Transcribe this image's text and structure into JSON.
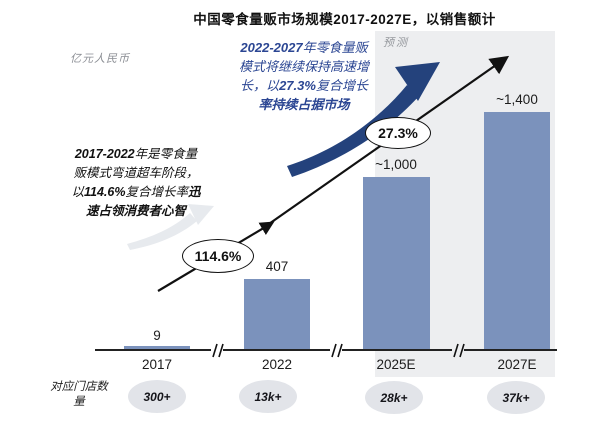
{
  "title": "中国零食量贩市场规模2017-2027E，以销售额计",
  "y_unit_label": "亿元人民币",
  "forecast_label": "预测",
  "chart_data": {
    "type": "bar",
    "categories": [
      "2017",
      "2022",
      "2025E",
      "2027E"
    ],
    "values": [
      9,
      407,
      1000,
      1400
    ],
    "display_values": [
      "9",
      "407",
      "~1,000",
      "~1,400"
    ],
    "title": "中国零食量贩市场规模2017-2027E，以销售额计",
    "ylabel": "亿元人民币",
    "xlabel": "",
    "axis_breaks": true,
    "forecast_categories": [
      "2025E",
      "2027E"
    ],
    "bar_color": "#7b92bc",
    "growth_annotations": [
      {
        "label": "114.6%",
        "period": "2017-2022"
      },
      {
        "label": "27.3%",
        "period": "2022-2027"
      }
    ],
    "store_counts": {
      "label": "对应门店数量",
      "values": [
        "300+",
        "13k+",
        "28k+",
        "37k+"
      ]
    }
  },
  "annotations": {
    "past_note_segments": [
      {
        "t": "2017-2022",
        "b": true
      },
      {
        "t": "年是零食量",
        "b": false
      },
      {
        "br": true
      },
      {
        "t": "贩模式弯道超车阶段，",
        "b": false
      },
      {
        "br": true
      },
      {
        "t": "以",
        "b": false
      },
      {
        "t": "114.6%",
        "b": true
      },
      {
        "t": "复合增长率",
        "b": false
      },
      {
        "t": "迅",
        "b": true
      },
      {
        "br": true
      },
      {
        "t": "速占领消费者心智",
        "b": true
      }
    ],
    "forecast_note_segments": [
      {
        "t": "2022-2027",
        "b": true
      },
      {
        "t": "年零食量贩",
        "b": false
      },
      {
        "br": true
      },
      {
        "t": "模式将继续保持高速增",
        "b": false
      },
      {
        "br": true
      },
      {
        "t": "长，以",
        "b": false
      },
      {
        "t": "27.3%",
        "b": true
      },
      {
        "t": "复合增长",
        "b": false
      },
      {
        "br": true
      },
      {
        "t": "率",
        "b": true
      },
      {
        "t": "持续占据市场",
        "b": true
      }
    ]
  },
  "colors": {
    "bar": "#7b92bc",
    "navy_arrow": "#24427c",
    "blue_text": "#2b4693",
    "forecast_bg": "#edeef0",
    "badge_bg": "#e2e4e9"
  }
}
